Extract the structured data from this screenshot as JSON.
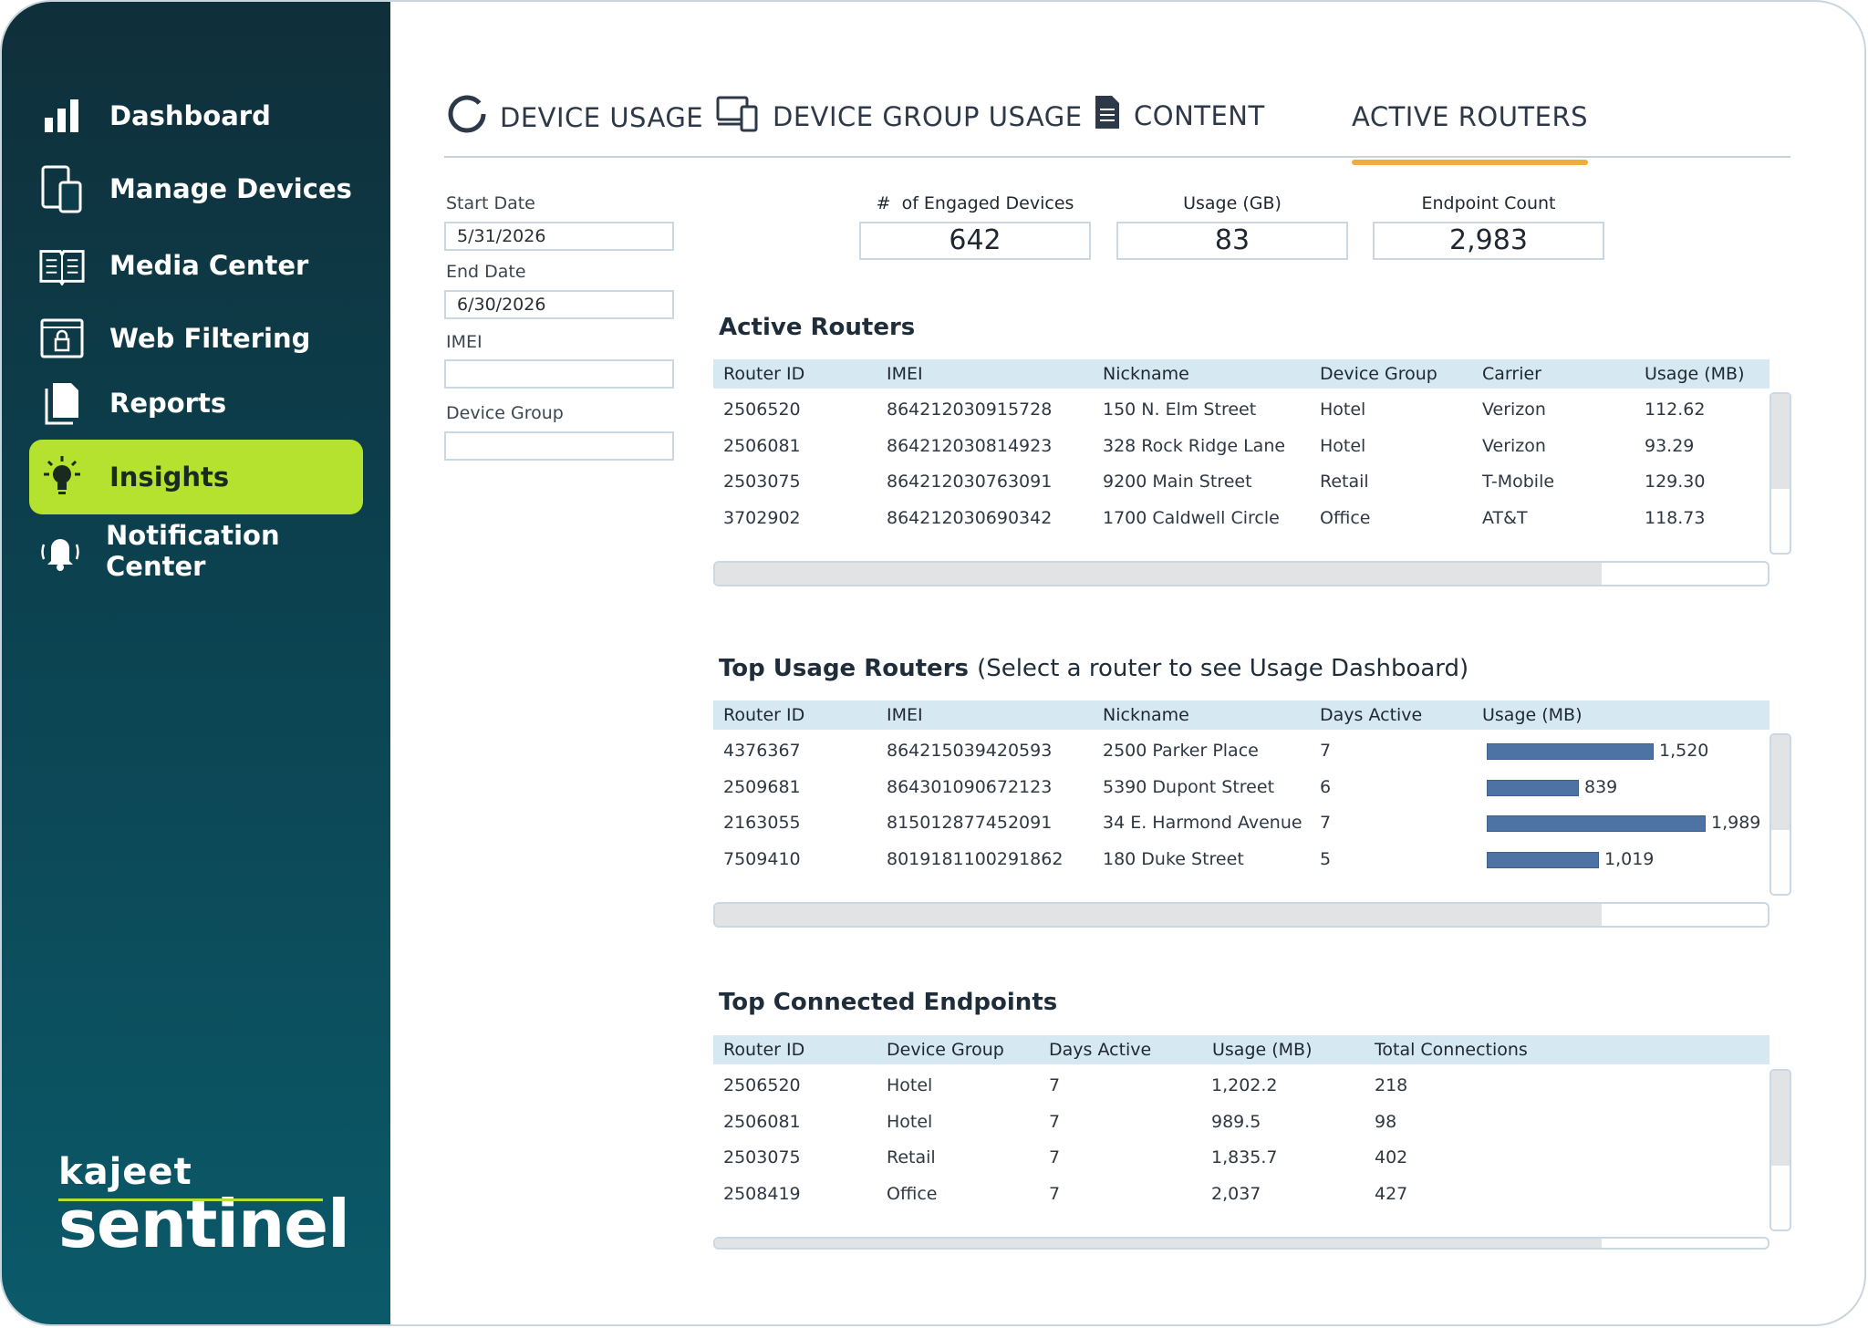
{
  "sidebar": {
    "items": [
      {
        "label": "Dashboard",
        "icon": "bar-chart-icon"
      },
      {
        "label": "Manage Devices",
        "icon": "devices-icon"
      },
      {
        "label": "Media Center",
        "icon": "book-icon"
      },
      {
        "label": "Web Filtering",
        "icon": "lock-window-icon"
      },
      {
        "label": "Reports",
        "icon": "document-icon"
      },
      {
        "label": "Insights",
        "icon": "lightbulb-icon",
        "active": true
      },
      {
        "label": "Notification Center",
        "icon": "bell-icon"
      }
    ],
    "brand_top": "kajeet",
    "brand_bottom": "sentinel",
    "accent": "#b5e22e"
  },
  "tabs": [
    {
      "label": "DEVICE USAGE",
      "icon": "ring-icon"
    },
    {
      "label": "DEVICE GROUP USAGE",
      "icon": "devices-icon"
    },
    {
      "label": "CONTENT",
      "icon": "document-icon"
    },
    {
      "label": "ACTIVE ROUTERS",
      "active": true
    }
  ],
  "filters": {
    "start_date_label": "Start Date",
    "start_date": "5/31/2026",
    "end_date_label": "End Date",
    "end_date": "6/30/2026",
    "imei_label": "IMEI",
    "imei": "",
    "device_group_label": "Device Group",
    "device_group": ""
  },
  "kpis": [
    {
      "label": "#  of Engaged Devices",
      "value": "642"
    },
    {
      "label": "Usage (GB)",
      "value": "83"
    },
    {
      "label": "Endpoint Count",
      "value": "2,983"
    }
  ],
  "active_routers": {
    "title": "Active Routers",
    "columns": [
      "Router ID",
      "IMEI",
      "Nickname",
      "Device Group",
      "Carrier",
      "Usage (MB)"
    ],
    "rows": [
      [
        "2506520",
        "864212030915728",
        "150 N. Elm Street",
        "Hotel",
        "Verizon",
        "112.62"
      ],
      [
        "2506081",
        "864212030814923",
        "328 Rock Ridge Lane",
        "Hotel",
        "Verizon",
        "93.29"
      ],
      [
        "2503075",
        "864212030763091",
        "9200 Main Street",
        "Retail",
        "T-Mobile",
        "129.30"
      ],
      [
        "3702902",
        "864212030690342",
        "1700 Caldwell Circle",
        "Office",
        "AT&T",
        "118.73"
      ]
    ]
  },
  "top_usage": {
    "title": "Top Usage Routers",
    "subtitle": "(Select a router to see Usage Dashboard)",
    "columns": [
      "Router ID",
      "IMEI",
      "Nickname",
      "Days Active",
      "Usage (MB)"
    ],
    "rows": [
      {
        "id": "4376367",
        "imei": "864215039420593",
        "nickname": "2500 Parker Place",
        "days": "7",
        "usage": 1520,
        "usage_label": "1,520"
      },
      {
        "id": "2509681",
        "imei": "864301090672123",
        "nickname": "5390 Dupont Street",
        "days": "6",
        "usage": 839,
        "usage_label": "839"
      },
      {
        "id": "2163055",
        "imei": "815012877452091",
        "nickname": "34 E. Harmond Avenue",
        "days": "7",
        "usage": 1989,
        "usage_label": "1,989"
      },
      {
        "id": "7509410",
        "imei": "8019181100291862",
        "nickname": "180 Duke Street",
        "days": "5",
        "usage": 1019,
        "usage_label": "1,019"
      }
    ],
    "bar_color": "#4d73a5",
    "bar_max": 1989
  },
  "top_endpoints": {
    "title": "Top Connected Endpoints",
    "columns": [
      "Router ID",
      "Device Group",
      "Days Active",
      "Usage (MB)",
      "Total Connections"
    ],
    "rows": [
      [
        "2506520",
        "Hotel",
        "7",
        "1,202.2",
        "218"
      ],
      [
        "2506081",
        "Hotel",
        "7",
        "989.5",
        "98"
      ],
      [
        "2503075",
        "Retail",
        "7",
        "1,835.7",
        "402"
      ],
      [
        "2508419",
        "Office",
        "7",
        "2,037",
        "427"
      ]
    ]
  }
}
